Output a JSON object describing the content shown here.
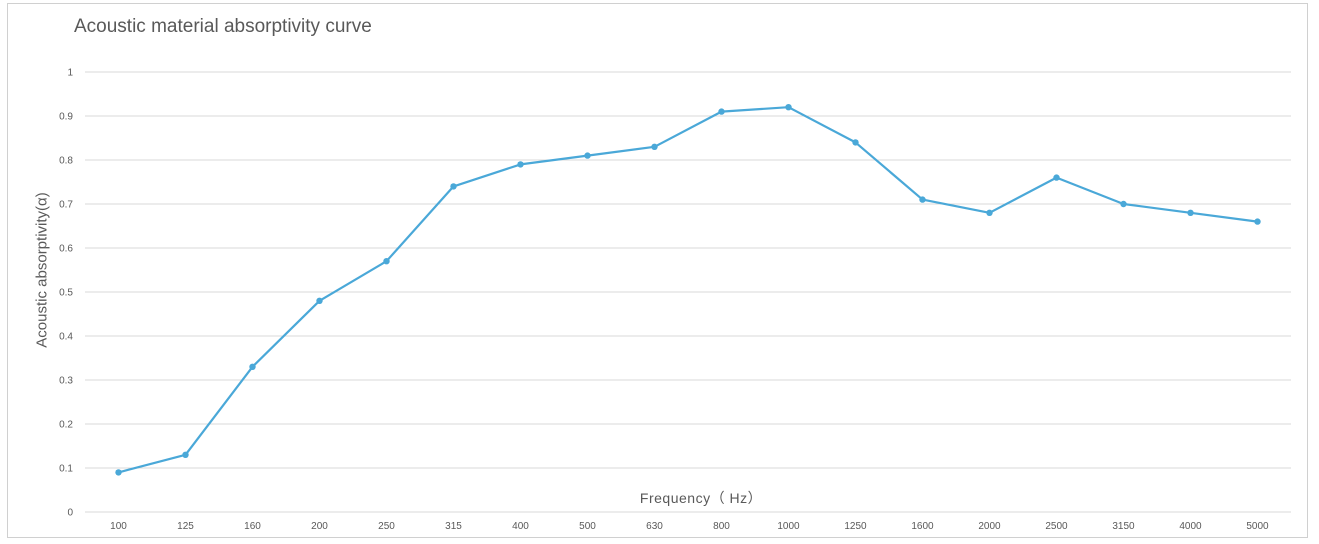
{
  "chart_data": {
    "type": "line",
    "title": "Acoustic material absorptivity curve",
    "xlabel": "Frequency（ Hz）",
    "ylabel": "Acoustic absorptivity(α)",
    "categories": [
      "100",
      "125",
      "160",
      "200",
      "250",
      "315",
      "400",
      "500",
      "630",
      "800",
      "1000",
      "1250",
      "1600",
      "2000",
      "2500",
      "3150",
      "4000",
      "5000"
    ],
    "values": [
      0.09,
      0.13,
      0.33,
      0.48,
      0.57,
      0.74,
      0.79,
      0.81,
      0.83,
      0.91,
      0.92,
      0.84,
      0.71,
      0.68,
      0.76,
      0.7,
      0.68,
      0.66
    ],
    "ylim": [
      0,
      1
    ],
    "yticks": [
      "0",
      "0.1",
      "0.2",
      "0.3",
      "0.4",
      "0.5",
      "0.6",
      "0.7",
      "0.8",
      "0.9",
      "1"
    ],
    "grid": true,
    "line_color": "#4aa8d8",
    "grid_color": "#d9d9d9"
  }
}
